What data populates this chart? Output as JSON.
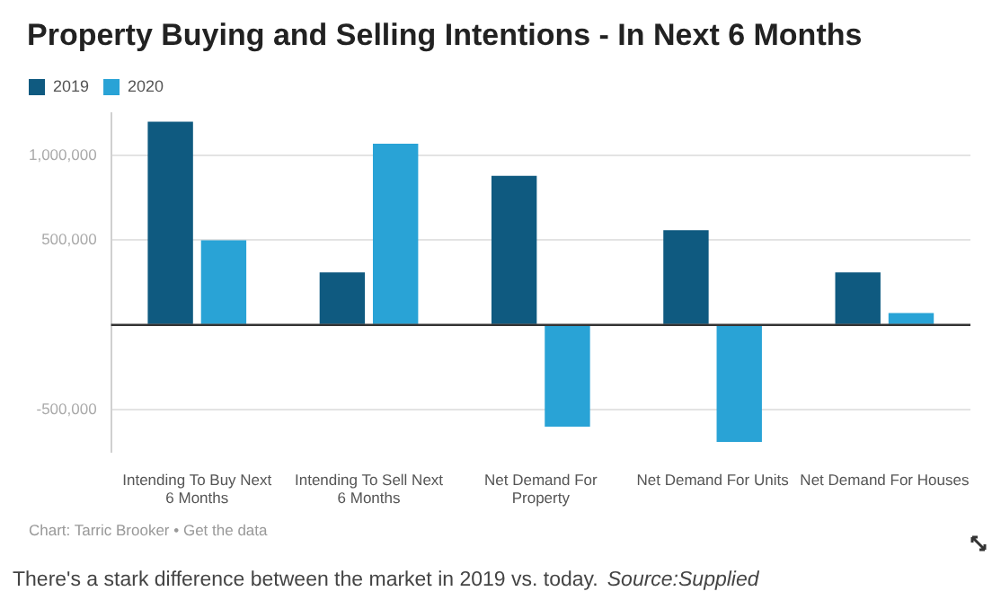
{
  "chart_data": {
    "type": "bar",
    "title": "Property Buying and Selling Intentions - In Next 6 Months",
    "categories": [
      "Intending To Buy Next 6 Months",
      "Intending To Sell Next 6 Months",
      "Net Demand For Property",
      "Net Demand For Units",
      "Net Demand For Houses"
    ],
    "series": [
      {
        "name": "2019",
        "color": "#0f5a80",
        "values": [
          1200000,
          310000,
          880000,
          560000,
          310000
        ]
      },
      {
        "name": "2020",
        "color": "#29a3d6",
        "values": [
          500000,
          1070000,
          -600000,
          -690000,
          70000
        ]
      }
    ],
    "ylim": [
      -750000,
      1250000
    ],
    "yticks": [
      {
        "value": -500000,
        "label": "-500,000"
      },
      {
        "value": 0,
        "label": null
      },
      {
        "value": 500000,
        "label": "500,000"
      },
      {
        "value": 1000000,
        "label": "1,000,000"
      }
    ],
    "grid": "y",
    "legend": "top left",
    "annotations": [
      "Chart: Tarric Brooker • Get the data",
      "There's a stark difference between the market in 2019 vs. today.",
      "Source:Supplied"
    ]
  }
}
